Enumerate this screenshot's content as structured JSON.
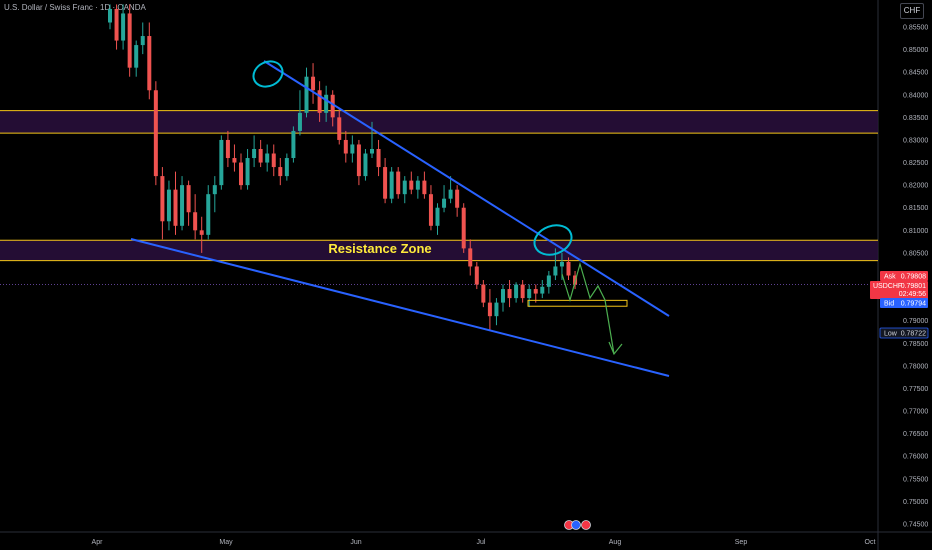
{
  "header": {
    "title": "U.S. Dollar / Swiss Franc · 1D · OANDA",
    "currency": "CHF"
  },
  "chart_data": {
    "type": "candlestick",
    "ylim": [
      0.7425,
      0.8575
    ],
    "yticks": [
      "0.85500",
      "0.85000",
      "0.84500",
      "0.84000",
      "0.83500",
      "0.83000",
      "0.82500",
      "0.82000",
      "0.81500",
      "0.81000",
      "0.80500",
      "0.80000",
      "0.79500",
      "0.79000",
      "0.78500",
      "0.78000",
      "0.77500",
      "0.77000",
      "0.76500",
      "0.76000",
      "0.75500",
      "0.75000",
      "0.74500"
    ],
    "xticks": [
      "Apr",
      "May",
      "Jun",
      "Jul",
      "Aug",
      "Sep",
      "Oct"
    ],
    "zones": [
      {
        "low": 0.8315,
        "high": 0.8365,
        "label": ""
      },
      {
        "low": 0.8033,
        "high": 0.8078,
        "label": "Resistance Zone"
      }
    ],
    "small_box": {
      "low": 0.7932,
      "high": 0.7945
    },
    "price_tags": {
      "ask_label": "Ask",
      "ask": "0.79808",
      "symbol": "USDCHF",
      "last": "0.79801",
      "countdown": "02:49:56",
      "bid_label": "Bid",
      "bid": "0.79794",
      "low_label": "Low",
      "low": "0.78722"
    },
    "colors": {
      "up": "#26a69a",
      "down": "#ef5350",
      "trend": "#2962ff",
      "zone_border": "#f5c518",
      "zone_fill": "#2a0f3d",
      "marker": "#00bcd4",
      "projection": "#4caf50"
    },
    "candles": [
      [
        0.856,
        0.86,
        0.8545,
        0.859
      ],
      [
        0.859,
        0.86,
        0.85,
        0.852
      ],
      [
        0.852,
        0.86,
        0.85,
        0.858
      ],
      [
        0.858,
        0.86,
        0.844,
        0.846
      ],
      [
        0.846,
        0.852,
        0.844,
        0.851
      ],
      [
        0.851,
        0.856,
        0.849,
        0.853
      ],
      [
        0.853,
        0.856,
        0.839,
        0.841
      ],
      [
        0.841,
        0.843,
        0.82,
        0.822
      ],
      [
        0.822,
        0.824,
        0.808,
        0.812
      ],
      [
        0.812,
        0.821,
        0.81,
        0.819
      ],
      [
        0.819,
        0.823,
        0.809,
        0.811
      ],
      [
        0.811,
        0.822,
        0.81,
        0.82
      ],
      [
        0.82,
        0.821,
        0.811,
        0.814
      ],
      [
        0.814,
        0.818,
        0.808,
        0.81
      ],
      [
        0.81,
        0.813,
        0.805,
        0.809
      ],
      [
        0.809,
        0.82,
        0.808,
        0.818
      ],
      [
        0.818,
        0.822,
        0.814,
        0.82
      ],
      [
        0.82,
        0.831,
        0.819,
        0.83
      ],
      [
        0.83,
        0.832,
        0.824,
        0.826
      ],
      [
        0.826,
        0.829,
        0.823,
        0.825
      ],
      [
        0.825,
        0.827,
        0.819,
        0.82
      ],
      [
        0.82,
        0.828,
        0.819,
        0.826
      ],
      [
        0.826,
        0.831,
        0.824,
        0.828
      ],
      [
        0.828,
        0.83,
        0.824,
        0.825
      ],
      [
        0.825,
        0.829,
        0.823,
        0.827
      ],
      [
        0.827,
        0.829,
        0.822,
        0.824
      ],
      [
        0.824,
        0.826,
        0.82,
        0.822
      ],
      [
        0.822,
        0.827,
        0.821,
        0.826
      ],
      [
        0.826,
        0.833,
        0.825,
        0.832
      ],
      [
        0.832,
        0.841,
        0.831,
        0.836
      ],
      [
        0.836,
        0.846,
        0.835,
        0.844
      ],
      [
        0.844,
        0.847,
        0.838,
        0.841
      ],
      [
        0.841,
        0.843,
        0.834,
        0.836
      ],
      [
        0.836,
        0.842,
        0.834,
        0.84
      ],
      [
        0.84,
        0.841,
        0.833,
        0.835
      ],
      [
        0.835,
        0.837,
        0.829,
        0.83
      ],
      [
        0.83,
        0.832,
        0.825,
        0.827
      ],
      [
        0.827,
        0.831,
        0.825,
        0.829
      ],
      [
        0.829,
        0.83,
        0.82,
        0.822
      ],
      [
        0.822,
        0.828,
        0.821,
        0.827
      ],
      [
        0.827,
        0.834,
        0.826,
        0.828
      ],
      [
        0.828,
        0.83,
        0.822,
        0.824
      ],
      [
        0.824,
        0.826,
        0.816,
        0.817
      ],
      [
        0.817,
        0.824,
        0.816,
        0.823
      ],
      [
        0.823,
        0.824,
        0.817,
        0.818
      ],
      [
        0.818,
        0.822,
        0.816,
        0.821
      ],
      [
        0.821,
        0.823,
        0.818,
        0.819
      ],
      [
        0.819,
        0.822,
        0.817,
        0.821
      ],
      [
        0.821,
        0.823,
        0.817,
        0.818
      ],
      [
        0.818,
        0.82,
        0.81,
        0.811
      ],
      [
        0.811,
        0.816,
        0.809,
        0.815
      ],
      [
        0.815,
        0.82,
        0.814,
        0.817
      ],
      [
        0.817,
        0.822,
        0.816,
        0.819
      ],
      [
        0.819,
        0.82,
        0.813,
        0.815
      ],
      [
        0.815,
        0.816,
        0.805,
        0.806
      ],
      [
        0.806,
        0.808,
        0.8,
        0.802
      ],
      [
        0.802,
        0.803,
        0.797,
        0.798
      ],
      [
        0.798,
        0.799,
        0.793,
        0.794
      ],
      [
        0.794,
        0.797,
        0.788,
        0.791
      ],
      [
        0.791,
        0.795,
        0.789,
        0.794
      ],
      [
        0.794,
        0.798,
        0.792,
        0.797
      ],
      [
        0.797,
        0.799,
        0.793,
        0.795
      ],
      [
        0.795,
        0.7985,
        0.794,
        0.798
      ],
      [
        0.798,
        0.799,
        0.794,
        0.795
      ],
      [
        0.795,
        0.798,
        0.793,
        0.797
      ],
      [
        0.797,
        0.798,
        0.794,
        0.796
      ],
      [
        0.796,
        0.799,
        0.795,
        0.7975
      ],
      [
        0.7975,
        0.801,
        0.796,
        0.8
      ],
      [
        0.8,
        0.806,
        0.799,
        0.802
      ],
      [
        0.802,
        0.805,
        0.799,
        0.803
      ],
      [
        0.803,
        0.804,
        0.799,
        0.8
      ],
      [
        0.8,
        0.801,
        0.797,
        0.798
      ]
    ]
  }
}
